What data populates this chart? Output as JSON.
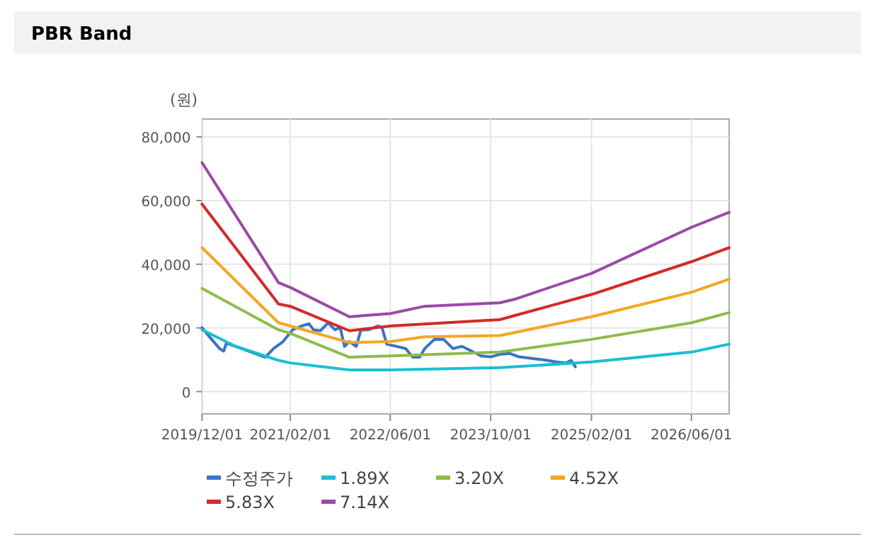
{
  "chart_data": {
    "type": "line",
    "title": "PBR Band",
    "ylabel": "(원)",
    "xlim": [
      "2019-12-01",
      "2026-12-01"
    ],
    "ylim": [
      -7000,
      85600
    ],
    "xticks": [
      {
        "value": "2019-12-01",
        "label": "2019/12/01"
      },
      {
        "value": "2021-02-01",
        "label": "2021/02/01"
      },
      {
        "value": "2022-06-01",
        "label": "2022/06/01"
      },
      {
        "value": "2023-10-01",
        "label": "2023/10/01"
      },
      {
        "value": "2025-02-01",
        "label": "2025/02/01"
      },
      {
        "value": "2026-06-01",
        "label": "2026/06/01"
      }
    ],
    "yticks": [
      0,
      {
        "value": 20000,
        "label": "20,000"
      },
      {
        "value": 40000,
        "label": "40,000"
      },
      {
        "value": 60000,
        "label": "60,000"
      },
      {
        "value": 80000,
        "label": "80,000"
      }
    ],
    "grid": true,
    "legend": "bottom",
    "marker": "none",
    "line_style": "solid",
    "series": [
      {
        "name": "수정주가",
        "color": "#3a75c4",
        "x": [
          "2019-12-01",
          "2019-12-28",
          "2020-02-24",
          "2020-03-15",
          "2020-03-28",
          "2020-05-12",
          "2020-08-12",
          "2020-10-03",
          "2020-11-12",
          "2020-12-28",
          "2021-02-12",
          "2021-03-28",
          "2021-05-03",
          "2021-05-25",
          "2021-06-28",
          "2021-08-03",
          "2021-09-06",
          "2021-10-01",
          "2021-10-22",
          "2021-11-15",
          "2021-12-18",
          "2022-01-10",
          "2022-02-15",
          "2022-04-01",
          "2022-04-22",
          "2022-05-15",
          "2022-07-01",
          "2022-08-15",
          "2022-09-18",
          "2022-10-22",
          "2022-11-15",
          "2023-01-01",
          "2023-02-15",
          "2023-04-01",
          "2023-05-15",
          "2023-07-01",
          "2023-08-15",
          "2023-10-01",
          "2023-11-15",
          "2024-01-01",
          "2024-02-15",
          "2024-05-15",
          "2024-07-01",
          "2024-08-15",
          "2024-10-01",
          "2024-10-25",
          "2024-11-15"
        ],
        "values": [
          20100,
          17900,
          13500,
          12700,
          15200,
          14200,
          12000,
          10800,
          13500,
          15700,
          19400,
          20600,
          21300,
          19400,
          19100,
          21600,
          19400,
          20100,
          14200,
          15700,
          14200,
          19400,
          19400,
          20600,
          20100,
          14900,
          14200,
          13500,
          10800,
          10800,
          13500,
          16400,
          16400,
          13500,
          14200,
          12700,
          11200,
          10900,
          11700,
          12000,
          10900,
          10200,
          9800,
          9300,
          9000,
          9800,
          7800
        ]
      },
      {
        "name": "1.89X",
        "color": "#1bbfd2",
        "x": [
          "2019-12-01",
          "2020-05-12",
          "2020-12-06",
          "2021-02-01",
          "2021-11-15",
          "2022-06-01",
          "2023-11-15",
          "2025-02-01",
          "2026-06-01",
          "2026-12-01"
        ],
        "values": [
          19400,
          14200,
          9800,
          9000,
          6800,
          6800,
          7500,
          9300,
          12400,
          14900
        ]
      },
      {
        "name": "3.20X",
        "color": "#8fbc4a",
        "x": [
          "2019-12-01",
          "2020-12-06",
          "2021-02-01",
          "2021-11-15",
          "2022-06-01",
          "2023-11-15",
          "2025-02-01",
          "2026-06-01",
          "2026-12-01"
        ],
        "values": [
          32400,
          19400,
          18300,
          10800,
          11200,
          12400,
          16400,
          21600,
          24800
        ]
      },
      {
        "name": "4.52X",
        "color": "#f5a623",
        "x": [
          "2019-12-01",
          "2020-12-06",
          "2021-02-01",
          "2021-11-15",
          "2022-06-01",
          "2022-11-15",
          "2023-11-15",
          "2025-02-01",
          "2026-06-01",
          "2026-12-01"
        ],
        "values": [
          45200,
          21600,
          20600,
          15400,
          15700,
          17200,
          17600,
          23500,
          31200,
          35300
        ]
      },
      {
        "name": "5.83X",
        "color": "#d42a2a",
        "x": [
          "2019-12-01",
          "2020-12-06",
          "2021-02-01",
          "2021-11-15",
          "2022-06-01",
          "2023-11-15",
          "2025-02-01",
          "2026-06-01",
          "2026-12-01"
        ],
        "values": [
          58900,
          27500,
          26800,
          19100,
          20600,
          22600,
          30500,
          40800,
          45200
        ]
      },
      {
        "name": "7.14X",
        "color": "#9b4aa8",
        "x": [
          "2019-12-01",
          "2020-12-06",
          "2021-02-01",
          "2021-11-15",
          "2022-06-01",
          "2022-11-15",
          "2023-11-15",
          "2024-01-25",
          "2025-02-01",
          "2026-06-01",
          "2026-12-01"
        ],
        "values": [
          71900,
          34200,
          32700,
          23500,
          24500,
          26800,
          27900,
          29000,
          37100,
          51600,
          56300
        ]
      }
    ]
  }
}
